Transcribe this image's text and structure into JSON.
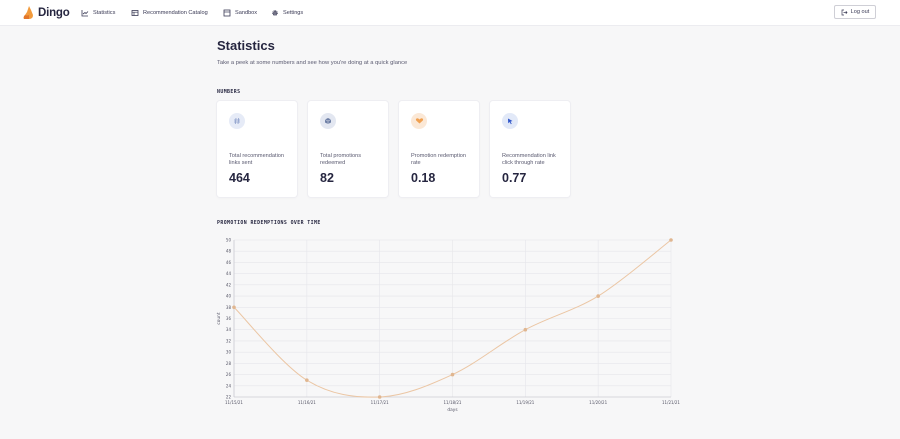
{
  "app": {
    "brand_name": "Dingo"
  },
  "nav": [
    {
      "label": "Statistics",
      "icon": "chart-line-icon"
    },
    {
      "label": "Recommendation Catalog",
      "icon": "catalog-icon"
    },
    {
      "label": "Sandbox",
      "icon": "sandbox-icon"
    },
    {
      "label": "Settings",
      "icon": "gear-icon"
    }
  ],
  "header": {
    "logout_label": "Log out",
    "logout_icon": "logout-icon"
  },
  "page": {
    "title": "Statistics",
    "subtitle": "Take a peek at some numbers and see how you're doing at a quick glance"
  },
  "numbers": {
    "section_label": "NUMBERS",
    "cards": [
      {
        "icon": "hash-icon",
        "icon_bg": "#e6ebf7",
        "icon_color": "#8d9fca",
        "label": "Total recommendation links sent",
        "value": "464"
      },
      {
        "icon": "box-icon",
        "icon_bg": "#e3e7f1",
        "icon_color": "#6e7fa5",
        "label": "Total promotions redeemed",
        "value": "82"
      },
      {
        "icon": "heart-hands-icon",
        "icon_bg": "#fbe8d6",
        "icon_color": "#f0a050",
        "label": "Promotion redemption rate",
        "value": "0.18"
      },
      {
        "icon": "cursor-click-icon",
        "icon_bg": "#e2e9f8",
        "icon_color": "#2f55c9",
        "label": "Recommendation link click through rate",
        "value": "0.77"
      }
    ]
  },
  "chart_section": {
    "label": "PROMOTION REDEMPTIONS OVER TIME"
  },
  "chart_data": {
    "type": "line",
    "title": "",
    "xlabel": "days",
    "ylabel": "count",
    "categories": [
      "11/15/21",
      "11/16/21",
      "11/17/21",
      "11/18/21",
      "11/19/21",
      "11/20/21",
      "11/21/21"
    ],
    "series": [
      {
        "values": [
          38,
          25,
          22,
          26,
          34,
          40,
          50
        ]
      }
    ],
    "y_ticks": [
      "22",
      "24",
      "26",
      "28",
      "30",
      "32",
      "34",
      "36",
      "38",
      "40",
      "42",
      "44",
      "46",
      "48",
      "50"
    ],
    "ylim": [
      22,
      50
    ],
    "grid": true,
    "line_color": "#ebc6a4",
    "marker_color": "#e0b690"
  }
}
